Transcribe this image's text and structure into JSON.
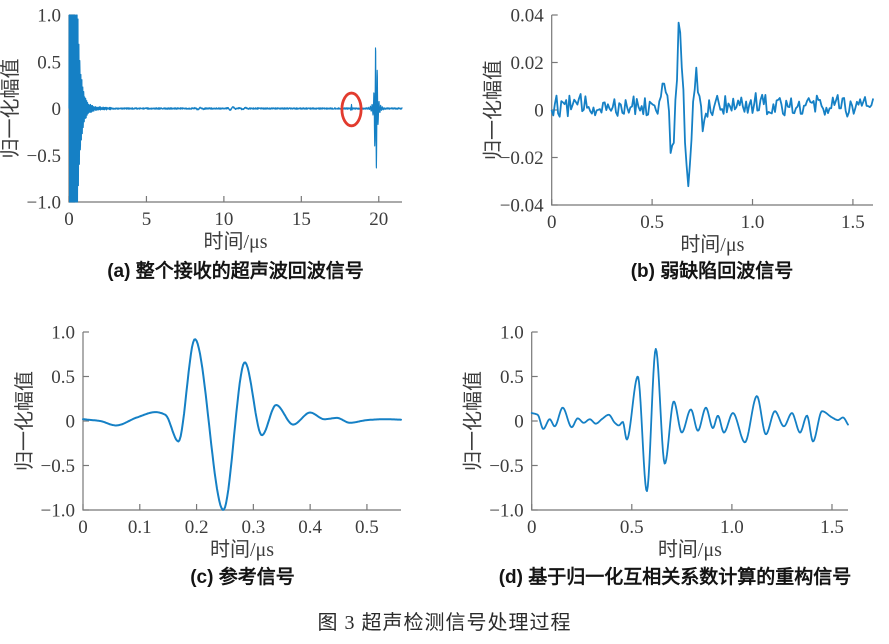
{
  "figure_caption": "图 3  超声检测信号处理过程",
  "style": {
    "line_color": "#1580c5",
    "axis_color": "#787878",
    "text_color": "#3d3d3d",
    "caption_color": "#141414",
    "annotation_red": "#e23b2e",
    "background": "#ffffff"
  },
  "chart_data": [
    {
      "id": "a",
      "type": "line",
      "caption": "(a) 整个接收的超声波回波信号",
      "xlabel": "时间/μs",
      "ylabel": "归一化幅值",
      "xlim": [
        0,
        21.5
      ],
      "ylim": [
        -1,
        1
      ],
      "xticks": [
        0,
        5,
        10,
        15,
        20
      ],
      "xtick_labels": [
        "0",
        "5",
        "10",
        "15",
        "20"
      ],
      "yticks": [
        -1,
        -0.5,
        0,
        0.5,
        1
      ],
      "ytick_labels": [
        "−1.0",
        "−0.5",
        "0",
        "0.5",
        "1.0"
      ],
      "grid": false,
      "legend": null,
      "signal": {
        "sample_step": 0.01,
        "clip": [
          -1,
          1
        ],
        "components": [
          {
            "type": "tone_burst",
            "freq": 16,
            "phase": 0,
            "envelope": [
              [
                0,
                0.3
              ],
              [
                0.015,
                1.8
              ],
              [
                0.45,
                1.6
              ],
              [
                0.55,
                1.1
              ],
              [
                0.65,
                0.65
              ],
              [
                0.78,
                0.38
              ],
              [
                0.9,
                0.22
              ],
              [
                1.05,
                0.11
              ],
              [
                1.25,
                0.05
              ],
              [
                1.6,
                0.02
              ],
              [
                2.2,
                0.008
              ],
              [
                3,
                0.004
              ]
            ]
          },
          {
            "type": "noise",
            "amp": 0.008,
            "seed": 5,
            "offset": 0
          },
          {
            "type": "gabor",
            "center": 8.4,
            "sigma": 0.3,
            "freq": 2.5,
            "amp": 0.012,
            "phase": 0
          },
          {
            "type": "gabor",
            "center": 10.5,
            "sigma": 0.25,
            "freq": 2.5,
            "amp": 0.016,
            "phase": 0
          },
          {
            "type": "gabor",
            "center": 11.3,
            "sigma": 0.25,
            "freq": 2.5,
            "amp": 0.012,
            "phase": 0
          },
          {
            "type": "gabor",
            "center": 18.24,
            "sigma": 0.05,
            "freq": 10,
            "amp": 0.04,
            "phase": 1.5708
          },
          {
            "type": "gabor",
            "center": 19.82,
            "sigma": 0.1,
            "freq": 9,
            "amp": 0.6,
            "phase": 3.1416
          },
          {
            "type": "gabor",
            "center": 19.82,
            "sigma": 0.28,
            "freq": 9,
            "amp": 0.1,
            "phase": 3.1416
          }
        ]
      },
      "annotations": [
        {
          "type": "ellipse",
          "cx": 18.24,
          "cy": -0.01,
          "rx": 0.62,
          "ry": 0.175,
          "color": "#e23b2e",
          "stroke_width": 2.8
        }
      ]
    },
    {
      "id": "b",
      "type": "line",
      "caption": "(b) 弱缺陷回波信号",
      "xlabel": "时间/μs",
      "ylabel": "归一化幅值",
      "xlim": [
        0,
        1.6
      ],
      "ylim": [
        -0.04,
        0.04
      ],
      "xticks": [
        0,
        0.5,
        1,
        1.5
      ],
      "xtick_labels": [
        "0",
        "0.5",
        "1.0",
        "1.5"
      ],
      "yticks": [
        -0.04,
        -0.02,
        0,
        0.02,
        0.04
      ],
      "ytick_labels": [
        "−0.04",
        "−0.02",
        "0",
        "0.02",
        "0.04"
      ],
      "grid": false,
      "legend": null,
      "signal": {
        "sample_step": 0.008,
        "components": [
          {
            "type": "noise",
            "amp": 0.0048,
            "seed": 12,
            "offset": 0.0018
          },
          {
            "type": "spline",
            "points": [
              [
                0,
                0
              ],
              [
                0.53,
                0.001
              ],
              [
                0.552,
                0.005
              ],
              [
                0.568,
                0.008
              ],
              [
                0.583,
                -0.004
              ],
              [
                0.597,
                -0.022
              ],
              [
                0.611,
                -0.009
              ],
              [
                0.625,
                0.016
              ],
              [
                0.637,
                0.037
              ],
              [
                0.651,
                0.012
              ],
              [
                0.666,
                -0.016
              ],
              [
                0.68,
                -0.032
              ],
              [
                0.694,
                -0.016
              ],
              [
                0.706,
                0.002
              ],
              [
                0.716,
                0.013
              ],
              [
                0.73,
                0.004
              ],
              [
                0.752,
                -0.007
              ],
              [
                0.775,
                -0.002
              ],
              [
                0.82,
                0.001
              ],
              [
                1.6,
                0
              ]
            ]
          }
        ]
      },
      "annotations": []
    },
    {
      "id": "c",
      "type": "line",
      "caption": "(c) 参考信号",
      "xlabel": "时间/μs",
      "ylabel": "归一化幅值",
      "xlim": [
        0,
        0.56
      ],
      "ylim": [
        -1,
        1
      ],
      "xticks": [
        0,
        0.1,
        0.2,
        0.3,
        0.4,
        0.5
      ],
      "xtick_labels": [
        "0",
        "0.1",
        "0.2",
        "0.3",
        "0.4",
        "0.5"
      ],
      "yticks": [
        -1,
        -0.5,
        0,
        0.5,
        1
      ],
      "ytick_labels": [
        "−1.0",
        "−0.5",
        "0",
        "0.5",
        "1.0"
      ],
      "grid": false,
      "legend": null,
      "signal": {
        "sample_step": 0.002,
        "components": [
          {
            "type": "spline",
            "points": [
              [
                0,
                0.02
              ],
              [
                0.03,
                0
              ],
              [
                0.058,
                -0.05
              ],
              [
                0.095,
                0.04
              ],
              [
                0.128,
                0.1
              ],
              [
                0.145,
                0.07
              ],
              [
                0.168,
                -0.23
              ],
              [
                0.197,
                0.92
              ],
              [
                0.247,
                -1.0
              ],
              [
                0.285,
                0.66
              ],
              [
                0.315,
                -0.16
              ],
              [
                0.34,
                0.18
              ],
              [
                0.37,
                -0.04
              ],
              [
                0.4,
                0.095
              ],
              [
                0.425,
                0.02
              ],
              [
                0.447,
                0.035
              ],
              [
                0.47,
                -0.02
              ],
              [
                0.5,
                0.01
              ],
              [
                0.53,
                0.02
              ],
              [
                0.56,
                0.015
              ]
            ]
          }
        ]
      },
      "annotations": []
    },
    {
      "id": "d",
      "type": "line",
      "caption": "(d) 基于归一化互相关系数计算的重构信号",
      "xlabel": "时间/μs",
      "ylabel": "归一化幅值",
      "xlim": [
        0,
        1.58
      ],
      "ylim": [
        -1,
        1
      ],
      "xticks": [
        0,
        0.5,
        1,
        1.5
      ],
      "xtick_labels": [
        "0",
        "0.5",
        "1.0",
        "1.5"
      ],
      "yticks": [
        -1,
        -0.5,
        0,
        0.5,
        1
      ],
      "ytick_labels": [
        "−1.0",
        "−0.5",
        "0",
        "0.5",
        "1.0"
      ],
      "grid": false,
      "legend": null,
      "signal": {
        "sample_step": 0.004,
        "components": [
          {
            "type": "spline",
            "points": [
              [
                0,
                0.09
              ],
              [
                0.03,
                0.07
              ],
              [
                0.058,
                -0.09
              ],
              [
                0.09,
                0.02
              ],
              [
                0.115,
                -0.06
              ],
              [
                0.155,
                0.15
              ],
              [
                0.2,
                -0.07
              ],
              [
                0.23,
                0.03
              ],
              [
                0.26,
                -0.02
              ],
              [
                0.29,
                0.02
              ],
              [
                0.32,
                -0.03
              ],
              [
                0.35,
                0.02
              ],
              [
                0.385,
                0.07
              ],
              [
                0.415,
                -0.02
              ],
              [
                0.435,
                -0.05
              ],
              [
                0.455,
                -0.01
              ],
              [
                0.475,
                -0.21
              ],
              [
                0.53,
                0.5
              ],
              [
                0.575,
                -0.79
              ],
              [
                0.62,
                0.81
              ],
              [
                0.665,
                -0.48
              ],
              [
                0.71,
                0.22
              ],
              [
                0.75,
                -0.13
              ],
              [
                0.795,
                0.13
              ],
              [
                0.83,
                -0.11
              ],
              [
                0.87,
                0.15
              ],
              [
                0.905,
                -0.08
              ],
              [
                0.93,
                0.06
              ],
              [
                0.96,
                -0.13
              ],
              [
                1.005,
                0.09
              ],
              [
                1.065,
                -0.24
              ],
              [
                1.125,
                0.28
              ],
              [
                1.17,
                -0.15
              ],
              [
                1.215,
                0.11
              ],
              [
                1.26,
                -0.06
              ],
              [
                1.3,
                0.09
              ],
              [
                1.34,
                -0.13
              ],
              [
                1.375,
                0.06
              ],
              [
                1.405,
                -0.23
              ],
              [
                1.45,
                0.11
              ],
              [
                1.5,
                0.04
              ],
              [
                1.53,
                0.01
              ],
              [
                1.555,
                0.04
              ],
              [
                1.58,
                -0.04
              ]
            ]
          }
        ]
      },
      "annotations": []
    }
  ]
}
